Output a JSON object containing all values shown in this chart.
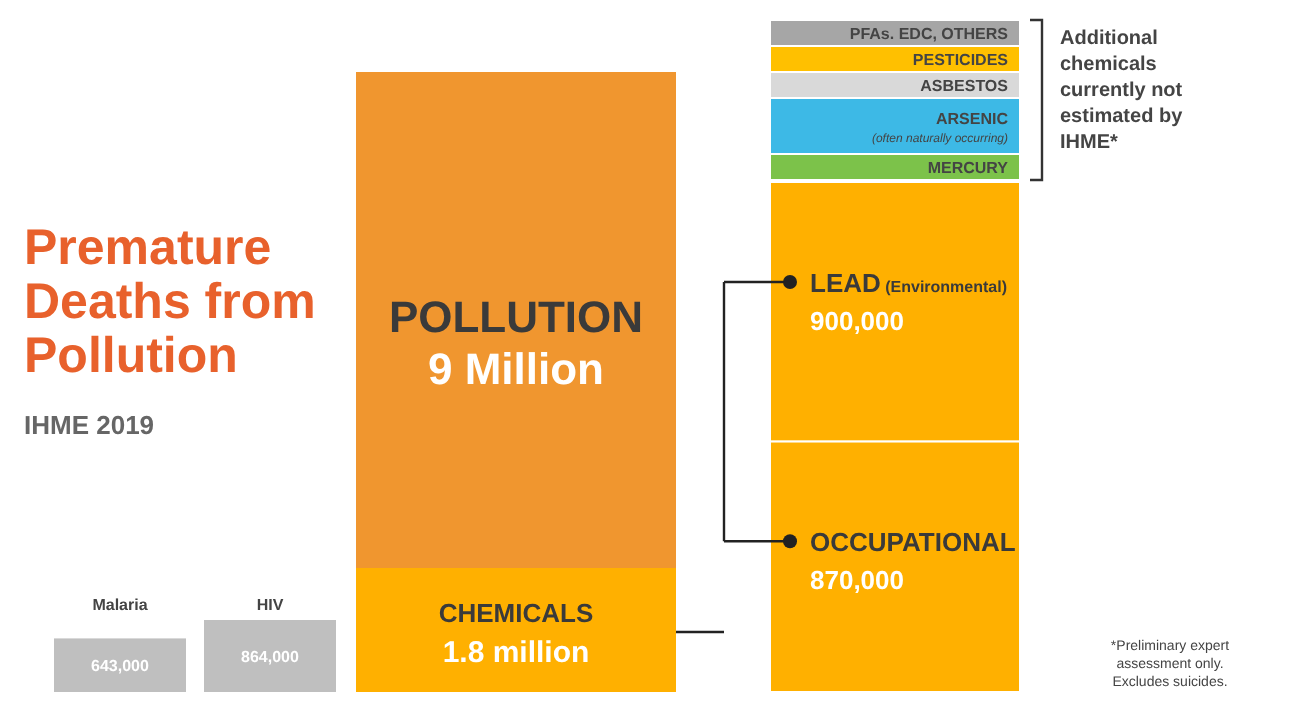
{
  "chart_data": [
    {
      "type": "bar",
      "title": "Premature Deaths from Pollution",
      "subtitle": "IHME 2019",
      "categories": [
        "Malaria",
        "HIV"
      ],
      "series": [
        {
          "color": "#bfbfbf",
          "values": [
            643000,
            864000
          ],
          "value_labels": [
            "643,000",
            "864,000"
          ]
        }
      ]
    },
    {
      "type": "bar",
      "stacked": true,
      "categories": [
        null
      ],
      "totals": [
        "9 Million"
      ],
      "series": [
        {
          "name": "CHEMICALS",
          "color": "#ffb000",
          "values": [
            1.8
          ],
          "value_labels": [
            "1.8 million"
          ]
        },
        {
          "name": "POLLUTION",
          "color": "#f0962f",
          "values": [
            7.2
          ]
        }
      ]
    },
    {
      "type": "bar",
      "stacked": true,
      "categories": [
        null
      ],
      "annotations": [
        "*Preliminary expert assessment only. Excludes suicides."
      ],
      "series": [
        {
          "name": "OCCUPATIONAL",
          "color": "#ffb000",
          "values": [
            870000
          ],
          "value_labels": [
            "870,000"
          ]
        },
        {
          "name": "LEAD (Environmental)",
          "color": "#ffb000",
          "values": [
            900000
          ],
          "value_labels": [
            "900,000"
          ]
        }
      ]
    },
    {
      "type": "other",
      "categories": [
        "PFAs. EDC, OTHERS",
        "PESTICIDES",
        "ASBESTOS",
        "ARSENIC (often naturally occurring)",
        "MERCURY"
      ],
      "colors": [
        "#a6a6a6",
        "#ffc000",
        "#d9d9d9",
        "#3db9e6",
        "#7cc24a"
      ],
      "annotations": [
        "Additional chemicals currently not estimated by IHME*"
      ]
    }
  ]
}
